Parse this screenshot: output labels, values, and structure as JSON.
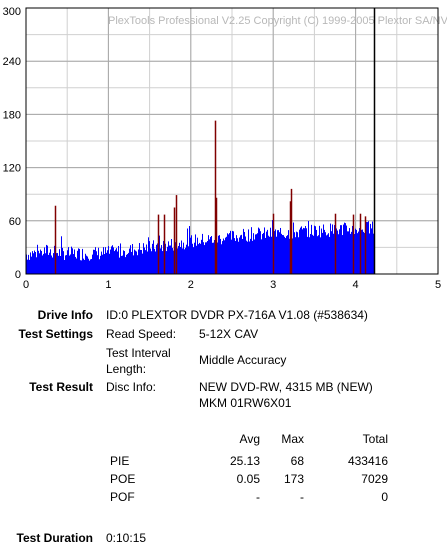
{
  "chart_data": {
    "type": "bar",
    "watermark": "PlexTools Professional V2.25 Copyright (C) 1999-2005 Plextor SA/NV",
    "xlim": [
      0,
      5
    ],
    "ylim": [
      0,
      300
    ],
    "x_ticks": [
      "0",
      "1",
      "2",
      "3",
      "4",
      "5"
    ],
    "y_ticks": [
      "0",
      "60",
      "120",
      "180",
      "240",
      "300"
    ],
    "grid": true,
    "series": [
      {
        "kind": "PIE baseline (blue fill)",
        "color": "#0000ff",
        "x": [
          0.0,
          0.25,
          0.5,
          0.75,
          1.0,
          1.25,
          1.5,
          1.75,
          2.0,
          2.25,
          2.5,
          2.75,
          3.0,
          3.25,
          3.5,
          3.75,
          4.0,
          4.22
        ],
        "y": [
          22,
          26,
          23,
          23,
          24,
          27,
          30,
          33,
          37,
          39,
          42,
          45,
          45,
          47,
          49,
          50,
          51,
          52
        ]
      },
      {
        "kind": "POE spikes (dark red)",
        "color": "#800000",
        "x": [
          0.35,
          1.6,
          1.68,
          1.8,
          1.82,
          2.29,
          2.3,
          3.0,
          3.2,
          3.22,
          3.75,
          3.97,
          4.05,
          4.12
        ],
        "y": [
          77,
          67,
          67,
          75,
          89,
          173,
          86,
          68,
          82,
          96,
          68,
          67,
          68,
          65
        ]
      },
      {
        "kind": "end-of-disc marker (black line)",
        "color": "#000000",
        "x": [
          4.22
        ],
        "y": [
          300
        ]
      }
    ]
  },
  "info": {
    "drive_label": "Drive Info",
    "drive_value": "ID:0 PLEXTOR DVDR  PX-716A  V1.08 (#538634)",
    "settings_label": "Test Settings",
    "read_speed_label": "Read Speed:",
    "read_speed_value": "5-12X CAV",
    "interval_label_1": "Test Interval",
    "interval_label_2": "Length:",
    "interval_value": "Middle Accuracy",
    "result_label": "Test Result",
    "disc_info_label": "Disc Info:",
    "disc_info_line1": "NEW DVD-RW, 4315 MB (NEW)",
    "disc_info_line2": "MKM 01RW6X01",
    "duration_label": "Test Duration",
    "duration_value": "0:10:15"
  },
  "stats": {
    "headers": [
      "Avg",
      "Max",
      "Total"
    ],
    "rows": [
      {
        "name": "PIE",
        "avg": "25.13",
        "max": "68",
        "total": "433416"
      },
      {
        "name": "POE",
        "avg": "0.05",
        "max": "173",
        "total": "7029"
      },
      {
        "name": "POF",
        "avg": "-",
        "max": "-",
        "total": "0"
      }
    ]
  }
}
